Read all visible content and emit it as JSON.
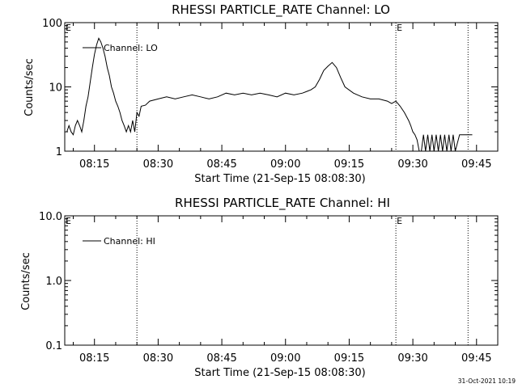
{
  "colors": {
    "background": "#ffffff",
    "foreground": "#000000"
  },
  "footer_timestamp": "31-Oct-2021 10:19",
  "chart_data": [
    {
      "type": "line",
      "title": "RHESSI PARTICLE_RATE Channel: LO",
      "xlabel": "Start Time (21-Sep-15 08:08:30)",
      "ylabel": "Counts/sec",
      "x_range": [
        "08:08",
        "09:50"
      ],
      "x_ticks": [
        "08:15",
        "08:30",
        "08:45",
        "09:00",
        "09:15",
        "09:30",
        "09:45"
      ],
      "y_scale": "log",
      "ylim": [
        1,
        100
      ],
      "y_ticks": [
        "1",
        "10",
        "100"
      ],
      "grid": false,
      "legend": {
        "position": "top-left",
        "entries": [
          "Channel: LO"
        ]
      },
      "markers": [
        {
          "label": "E",
          "x": "08:08"
        },
        {
          "label": "E",
          "x": "09:26"
        }
      ],
      "vlines": [
        "08:25",
        "09:26",
        "09:43"
      ],
      "series": [
        {
          "name": "Channel: LO",
          "x": [
            "08:08:30",
            "08:09:00",
            "08:09:30",
            "08:10:00",
            "08:10:30",
            "08:11:00",
            "08:11:30",
            "08:12:00",
            "08:12:30",
            "08:13:00",
            "08:13:30",
            "08:14:00",
            "08:14:30",
            "08:15:00",
            "08:15:30",
            "08:16:00",
            "08:16:30",
            "08:17:00",
            "08:17:30",
            "08:18:00",
            "08:18:30",
            "08:19:00",
            "08:19:30",
            "08:20:00",
            "08:20:30",
            "08:21:00",
            "08:21:30",
            "08:22:00",
            "08:22:30",
            "08:23:00",
            "08:23:30",
            "08:24:00",
            "08:24:30",
            "08:25:00",
            "08:25:30",
            "08:26:00",
            "08:27:00",
            "08:28:00",
            "08:30:00",
            "08:32:00",
            "08:34:00",
            "08:36:00",
            "08:38:00",
            "08:40:00",
            "08:42:00",
            "08:44:00",
            "08:46:00",
            "08:48:00",
            "08:50:00",
            "08:52:00",
            "08:54:00",
            "08:56:00",
            "08:58:00",
            "09:00:00",
            "09:02:00",
            "09:04:00",
            "09:05:00",
            "09:06:00",
            "09:07:00",
            "09:08:00",
            "09:09:00",
            "09:10:00",
            "09:11:00",
            "09:12:00",
            "09:13:00",
            "09:14:00",
            "09:16:00",
            "09:18:00",
            "09:20:00",
            "09:22:00",
            "09:24:00",
            "09:25:00",
            "09:26:00",
            "09:27:00",
            "09:28:00",
            "09:29:00",
            "09:29:30",
            "09:30:00",
            "09:30:30",
            "09:31:00",
            "09:31:30",
            "09:32:00",
            "09:32:30",
            "09:33:00",
            "09:33:30",
            "09:34:00",
            "09:34:30",
            "09:35:00",
            "09:35:30",
            "09:36:00",
            "09:36:30",
            "09:37:00",
            "09:37:30",
            "09:38:00",
            "09:38:30",
            "09:39:00",
            "09:39:30",
            "09:40:00",
            "09:41:00",
            "09:42:00",
            "09:43:00",
            "09:44:00"
          ],
          "y": [
            2,
            2.5,
            2,
            1.8,
            2.5,
            3,
            2.5,
            2,
            3,
            5,
            7,
            12,
            20,
            32,
            45,
            57,
            50,
            40,
            30,
            20,
            15,
            10,
            8,
            6,
            5,
            4,
            3,
            2.5,
            2,
            2.5,
            2,
            3,
            2,
            4,
            3.5,
            5,
            5.2,
            6,
            6.5,
            7,
            6.5,
            7,
            7.5,
            7,
            6.5,
            7,
            8,
            7.5,
            8,
            7.5,
            8,
            7.5,
            7,
            8,
            7.5,
            8,
            8.5,
            9,
            10,
            13,
            18,
            21,
            24,
            20,
            14,
            10,
            8,
            7,
            6.5,
            6.5,
            6,
            5.5,
            6,
            5,
            4,
            3,
            2.5,
            2,
            1.8,
            1.5,
            1,
            1,
            1.8,
            1,
            1.8,
            1,
            1.8,
            1,
            1.8,
            1,
            1.8,
            1,
            1.8,
            1,
            1.8,
            1,
            1.8,
            1,
            1.8,
            1.8,
            1.8,
            1.8
          ]
        }
      ]
    },
    {
      "type": "line",
      "title": "RHESSI PARTICLE_RATE Channel: HI",
      "xlabel": "Start Time (21-Sep-15 08:08:30)",
      "ylabel": "Counts/sec",
      "x_range": [
        "08:08",
        "09:50"
      ],
      "x_ticks": [
        "08:15",
        "08:30",
        "08:45",
        "09:00",
        "09:15",
        "09:30",
        "09:45"
      ],
      "y_scale": "log",
      "ylim": [
        0.1,
        10
      ],
      "y_ticks": [
        "0.1",
        "1.0",
        "10.0"
      ],
      "grid": false,
      "legend": {
        "position": "top-left",
        "entries": [
          "Channel: HI"
        ]
      },
      "markers": [
        {
          "label": "E",
          "x": "08:08"
        },
        {
          "label": "E",
          "x": "09:26"
        }
      ],
      "vlines": [
        "08:25",
        "09:26",
        "09:43"
      ],
      "series": [
        {
          "name": "Channel: HI",
          "x": [],
          "y": []
        }
      ]
    }
  ]
}
